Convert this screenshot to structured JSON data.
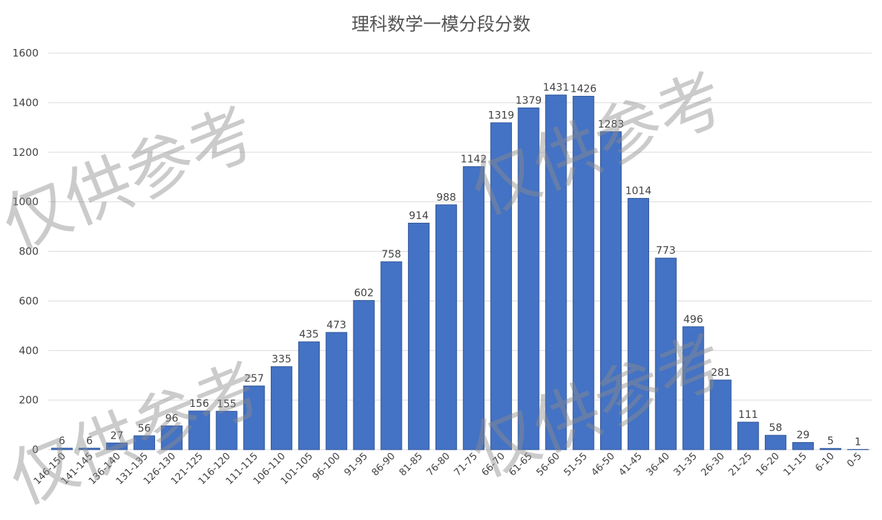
{
  "chart_data": {
    "type": "bar",
    "title": "理科数学一模分段分数",
    "categories": [
      "146-150",
      "141-145",
      "136-140",
      "131-135",
      "126-130",
      "121-125",
      "116-120",
      "111-115",
      "106-110",
      "101-105",
      "96-100",
      "91-95",
      "86-90",
      "81-85",
      "76-80",
      "71-75",
      "66-70",
      "61-65",
      "56-60",
      "51-55",
      "46-50",
      "41-45",
      "36-40",
      "31-35",
      "26-30",
      "21-25",
      "16-20",
      "11-15",
      "6-10",
      "0-5"
    ],
    "values": [
      6,
      6,
      27,
      56,
      96,
      156,
      155,
      257,
      335,
      435,
      473,
      602,
      758,
      914,
      988,
      1142,
      1319,
      1379,
      1431,
      1426,
      1283,
      1014,
      773,
      496,
      281,
      111,
      58,
      29,
      5,
      1
    ],
    "color": "#4472c4",
    "ylim": [
      0,
      1600
    ],
    "yticks": [
      0,
      200,
      400,
      600,
      800,
      1000,
      1200,
      1400,
      1600
    ],
    "grid": true,
    "watermarks": [
      "仅供参考",
      "仅供参考",
      "仅供参考",
      "仅供参考"
    ]
  }
}
